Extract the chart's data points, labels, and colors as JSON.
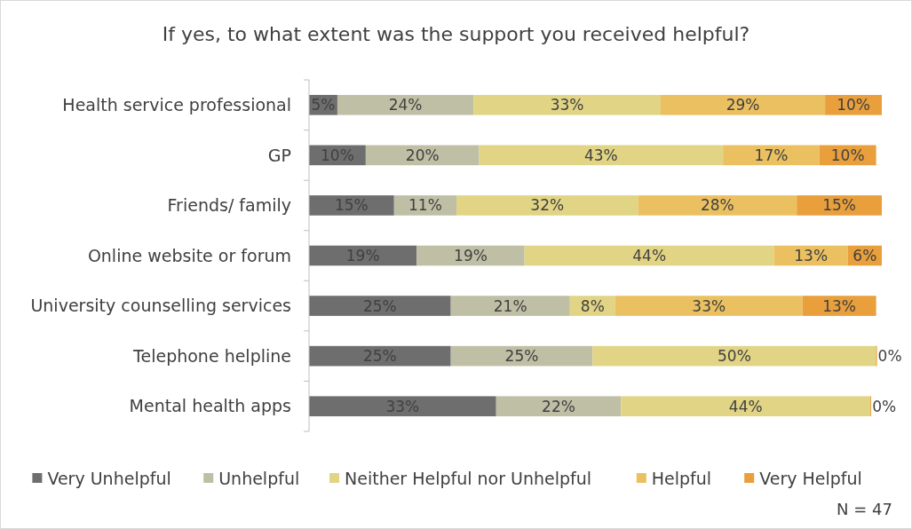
{
  "chart_data": {
    "type": "bar",
    "orientation": "horizontal",
    "stacked": true,
    "title": "If yes, to what extent was the support you received helpful?",
    "categories": [
      "Health service professional",
      "GP",
      "Friends/ family",
      "Online website or forum",
      "University counselling services",
      "Telephone helpline",
      "Mental health apps"
    ],
    "series": [
      {
        "name": "Very Unhelpful",
        "color": "#6e6e6e",
        "values": [
          5,
          10,
          15,
          19,
          25,
          25,
          33
        ],
        "value_labels": [
          "5%",
          "10%",
          "15%",
          "19%",
          "25%",
          "25%",
          "33%"
        ]
      },
      {
        "name": "Unhelpful",
        "color": "#bfbfa6",
        "values": [
          24,
          20,
          11,
          19,
          21,
          25,
          22
        ],
        "value_labels": [
          "24%",
          "20%",
          "11%",
          "19%",
          "21%",
          "25%",
          "22%"
        ]
      },
      {
        "name": "Neither Helpful nor Unhelpful",
        "color": "#e1d485",
        "values": [
          33,
          43,
          32,
          44,
          8,
          50,
          44
        ],
        "value_labels": [
          "33%",
          "43%",
          "32%",
          "44%",
          "8%",
          "50%",
          "44%"
        ]
      },
      {
        "name": "Helpful",
        "color": "#ebc060",
        "values": [
          29,
          17,
          28,
          13,
          33,
          0,
          0
        ],
        "value_labels": [
          "29%",
          "17%",
          "28%",
          "13%",
          "33%",
          null,
          null
        ]
      },
      {
        "name": "Very Helpful",
        "color": "#e89f3c",
        "values": [
          10,
          10,
          15,
          6,
          13,
          0,
          0
        ],
        "value_labels": [
          "10%",
          "10%",
          "15%",
          "6%",
          "13%",
          "0%",
          "0%"
        ]
      }
    ],
    "legend": "bottom",
    "annotations": [
      "N = 47"
    ]
  }
}
